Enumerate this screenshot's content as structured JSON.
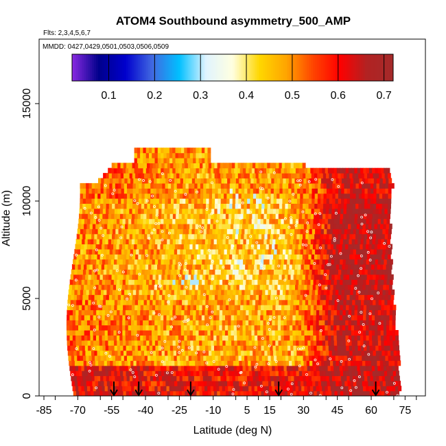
{
  "chart_data": {
    "type": "heatmap",
    "title": "ATOM4 Southbound asymmetry_500_AMP",
    "flights_note": "Flts: 2,3,4,5,6,7",
    "dates_note": "MMDD: 0427,0429,0501,0503,0506,0509",
    "xlabel": "Latitude (deg N)",
    "ylabel": "Altitude (m)",
    "xlim": [
      -88,
      88
    ],
    "ylim": [
      0,
      17500
    ],
    "x_ticks": [
      -85,
      -70,
      -55,
      -40,
      -25,
      -10,
      5,
      15,
      30,
      45,
      60,
      75
    ],
    "x_tick_labels": [
      "-85",
      "-70",
      "-55",
      "-40",
      "-25",
      "-10",
      "5",
      "15",
      "30",
      "45",
      "60",
      "75"
    ],
    "y_ticks": [
      0,
      5000,
      10000,
      15000
    ],
    "y_tick_labels": [
      "0",
      "5000",
      "10000",
      "15000"
    ],
    "colorbar": {
      "range": [
        0.02,
        0.72
      ],
      "ticks": [
        0.1,
        0.2,
        0.3,
        0.4,
        0.5,
        0.6,
        0.7
      ],
      "tick_labels": [
        "0.1",
        "0.2",
        "0.3",
        "0.4",
        "0.5",
        "0.6",
        "0.7"
      ],
      "colors": [
        "#8a2be2",
        "#00008b",
        "#0000cd",
        "#4169e1",
        "#00bfff",
        "#e0f4ff",
        "#ffffe0",
        "#ffd700",
        "#ffa500",
        "#ff4500",
        "#ff0000",
        "#b22222",
        "#a52a2a"
      ]
    },
    "data_extent": {
      "lat_min": -73,
      "lat_max": 72,
      "alt_min": 0,
      "alt_max": 12500
    },
    "arrow_latitudes": [
      -54,
      -43,
      -20,
      19,
      62
    ],
    "approx_values": [
      {
        "alt_band": "0-1500 m",
        "south": 0.62,
        "mid": 0.6,
        "north": 0.66
      },
      {
        "alt_band": "1500-5000 m",
        "south": 0.52,
        "mid": 0.47,
        "north": 0.64
      },
      {
        "alt_band": "5000-10000 m",
        "south": 0.5,
        "mid": 0.45,
        "north": 0.66
      },
      {
        "alt_band": "10000-12500 m",
        "south": 0.55,
        "mid": 0.48,
        "north": 0.63
      }
    ]
  }
}
